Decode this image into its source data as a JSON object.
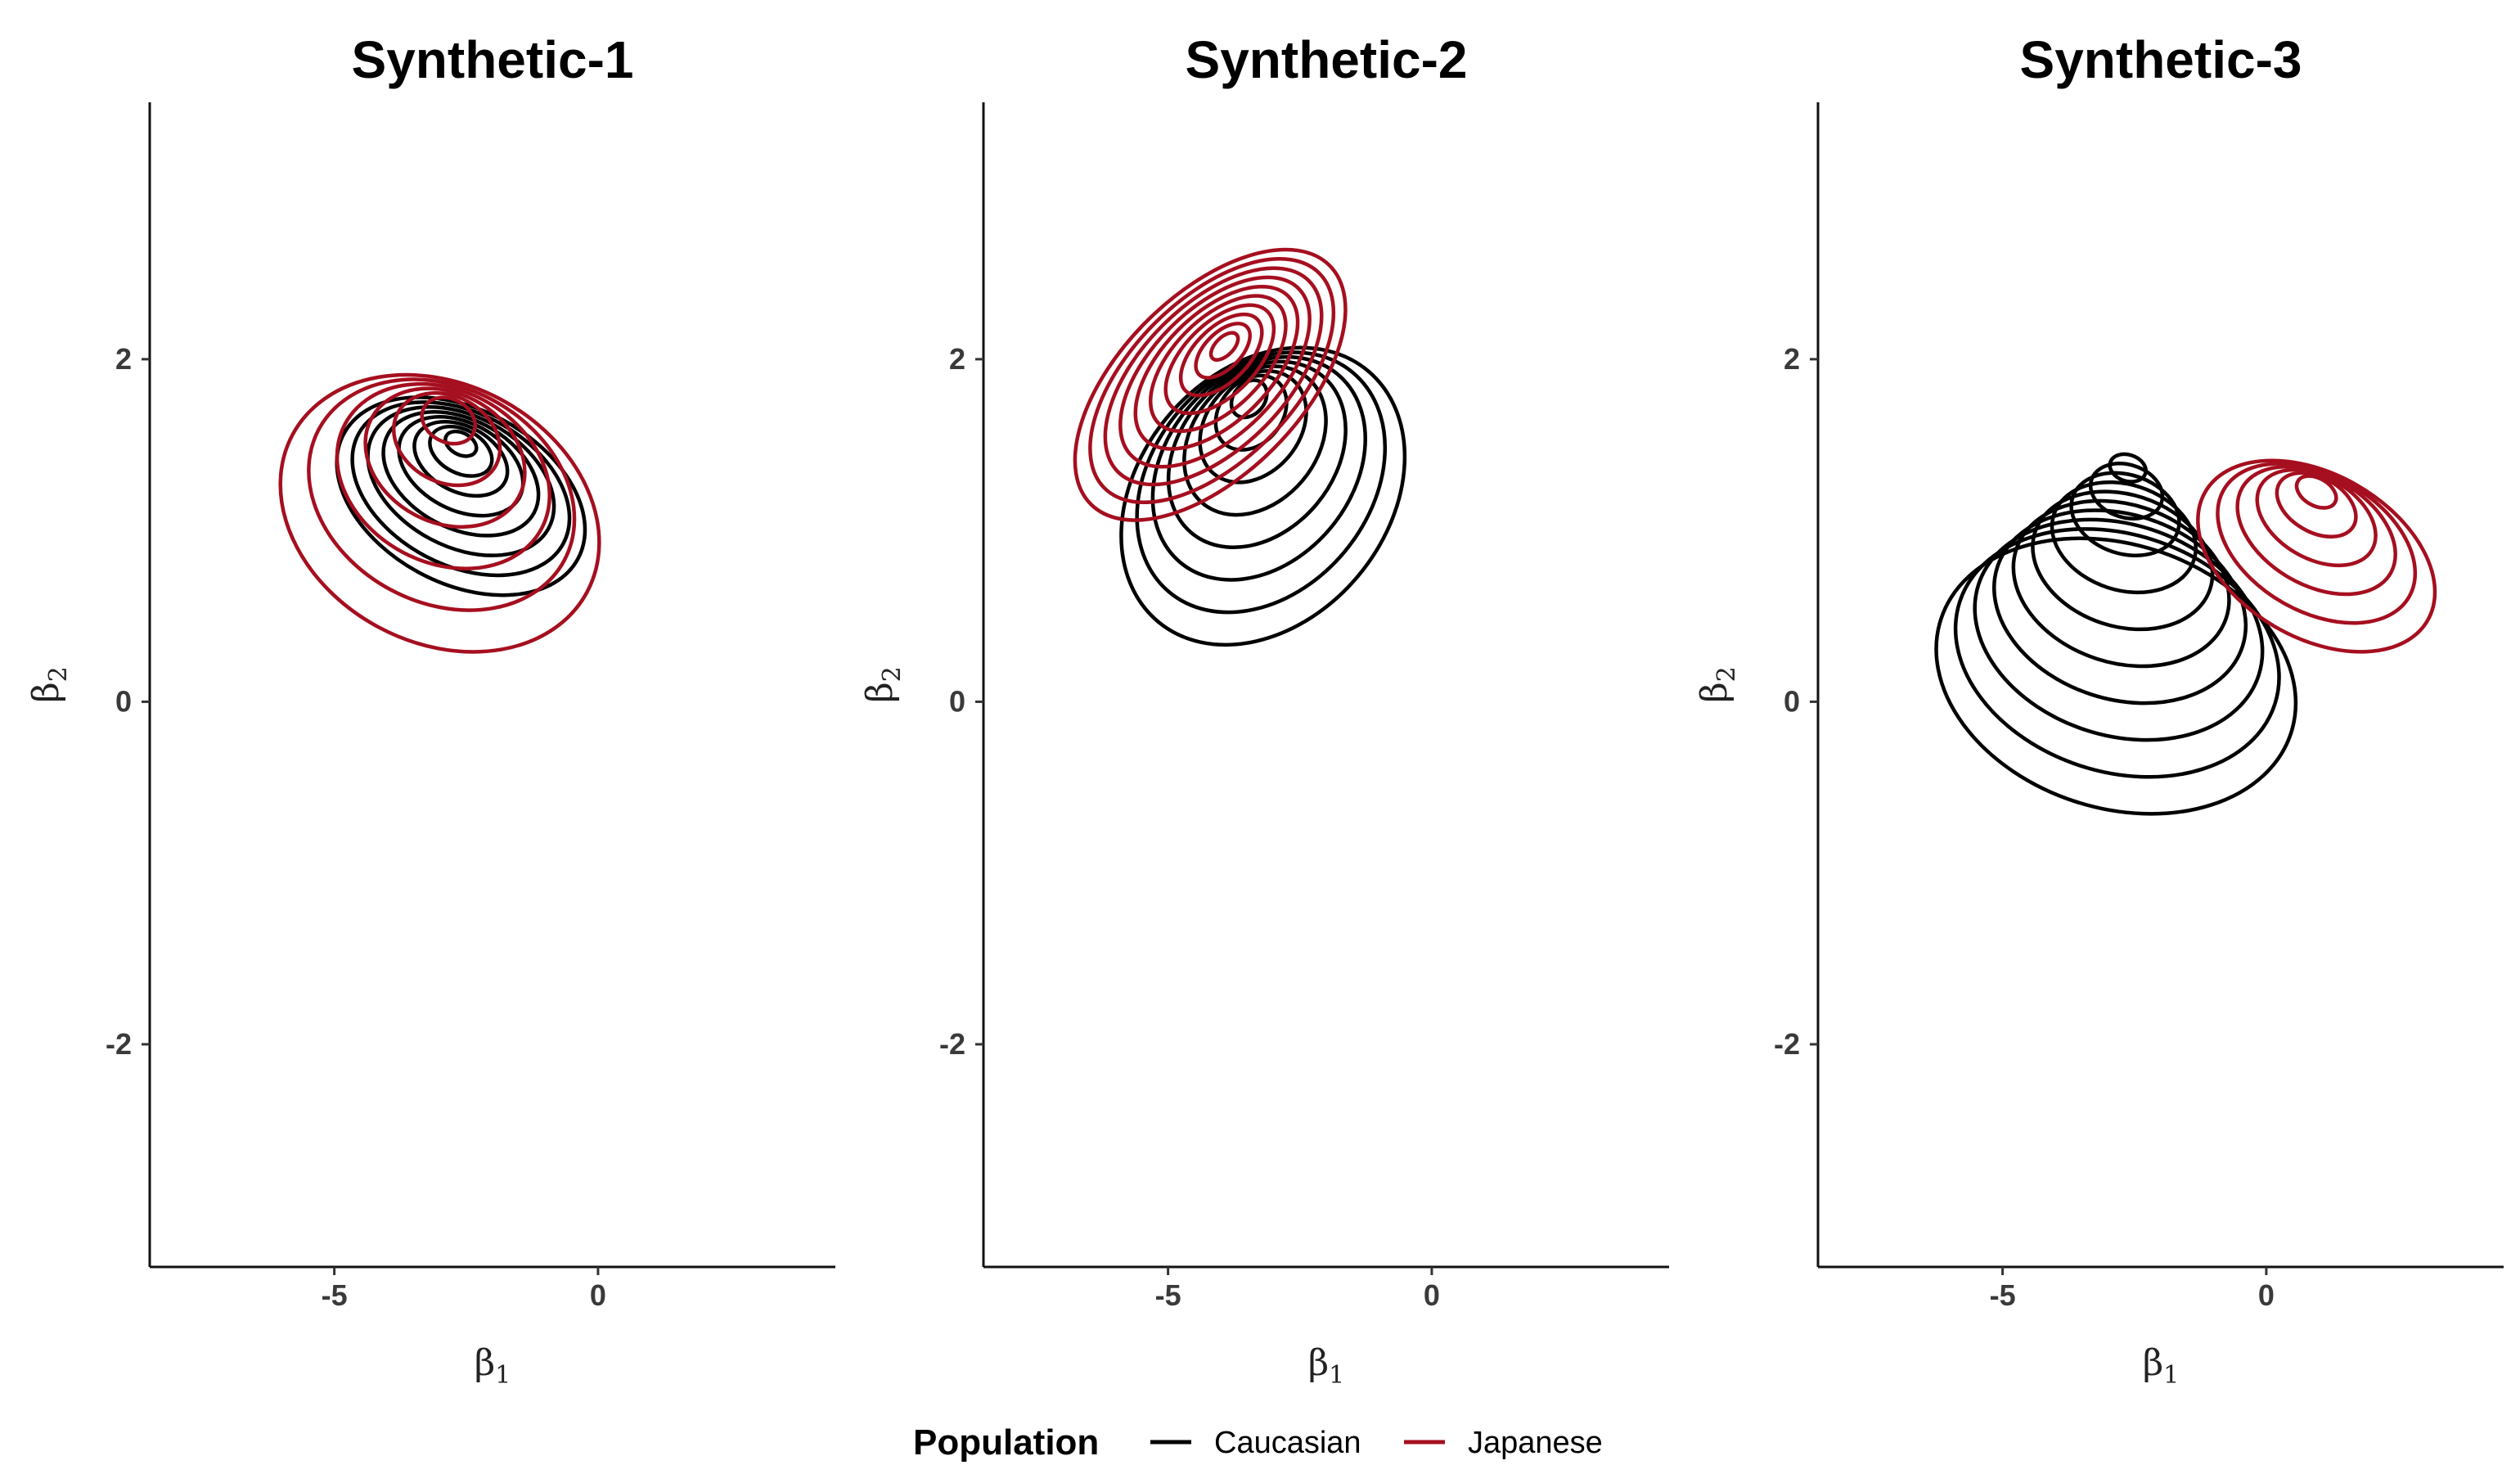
{
  "chart_data": [
    {
      "type": "contour",
      "title": "Synthetic-1",
      "xlabel": "β1",
      "ylabel": "β2",
      "xlim": [
        -8.5,
        4.5
      ],
      "ylim": [
        -3.3,
        3.5
      ],
      "xticks": [
        -5,
        0
      ],
      "yticks": [
        -2,
        0,
        2
      ],
      "series": [
        {
          "name": "Caucasian",
          "color": "#000000",
          "mode": [
            -2.6,
            1.55
          ],
          "levels": 8,
          "contours": [
            {
              "cx": -2.6,
              "cy": 1.2,
              "rx": 1.65,
              "ry": 1.55,
              "rot": -62
            }
          ]
        },
        {
          "name": "Japanese",
          "color": "#a50f1f",
          "mode": [
            -2.8,
            1.75
          ],
          "levels": 6,
          "contours": [
            {
              "cx": -3.0,
              "cy": 1.1,
              "rx": 2.45,
              "ry": 1.95,
              "rot": -62
            }
          ]
        }
      ]
    },
    {
      "type": "contour",
      "title": "Synthetic-2",
      "xlabel": "β1",
      "ylabel": "β2",
      "xlim": [
        -8.5,
        4.5
      ],
      "ylim": [
        -3.3,
        3.5
      ],
      "xticks": [
        -5,
        0
      ],
      "yticks": [
        -2,
        0,
        2
      ],
      "series": [
        {
          "name": "Caucasian",
          "color": "#000000",
          "mode": [
            -3.5,
            1.85
          ],
          "levels": 8,
          "contours": [
            {
              "cx": -3.2,
              "cy": 1.2,
              "rx": 3.1,
              "ry": 1.45,
              "rot": -50
            }
          ]
        },
        {
          "name": "Japanese",
          "color": "#a50f1f",
          "mode": [
            -3.9,
            2.1
          ],
          "levels": 10,
          "contours": [
            {
              "cx": -4.2,
              "cy": 1.85,
              "rx": 3.2,
              "ry": 1.05,
              "rot": -45
            }
          ]
        }
      ]
    },
    {
      "type": "contour",
      "title": "Synthetic-3",
      "xlabel": "β1",
      "ylabel": "β2",
      "xlim": [
        -8.5,
        4.5
      ],
      "ylim": [
        -3.3,
        3.5
      ],
      "xticks": [
        -5,
        0
      ],
      "yticks": [
        -2,
        0,
        2
      ],
      "series": [
        {
          "name": "Caucasian",
          "color": "#000000",
          "mode": [
            -2.6,
            1.5
          ],
          "levels": 10,
          "contours": [
            {
              "cx": -2.85,
              "cy": 0.15,
              "rx": 2.5,
              "ry": 2.15,
              "rot": -72
            }
          ]
        },
        {
          "name": "Japanese",
          "color": "#a50f1f",
          "mode": [
            0.95,
            1.3
          ],
          "levels": 6,
          "contours": [
            {
              "cx": 0.95,
              "cy": 0.85,
              "rx": 1.55,
              "ry": 1.5,
              "rot": -60
            }
          ]
        }
      ]
    }
  ],
  "legend": {
    "title": "Population",
    "items": [
      {
        "label": "Caucasian",
        "color": "#000000"
      },
      {
        "label": "Japanese",
        "color": "#a50f1f"
      }
    ]
  }
}
